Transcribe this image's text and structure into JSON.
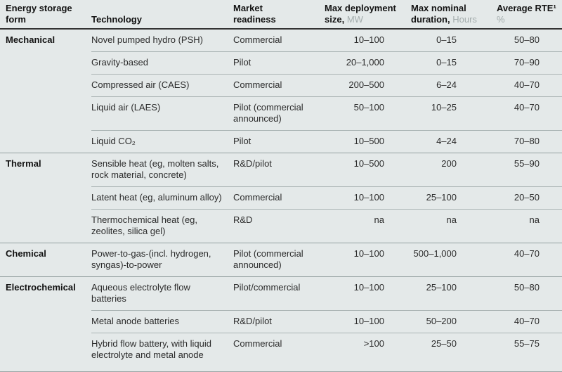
{
  "colors": {
    "background": "#e4e9e9",
    "header_rule": "#333333",
    "section_rule": "#94a0a0",
    "row_rule": "#aab4b4",
    "unit_text": "#a4adad",
    "body_text": "#2b2b2b"
  },
  "chart_data": {
    "type": "table",
    "columns": [
      {
        "label": "Energy storage form",
        "unit": ""
      },
      {
        "label": "Technology",
        "unit": ""
      },
      {
        "label": "Market readiness",
        "unit": ""
      },
      {
        "label": "Max deployment size,",
        "unit": "MW"
      },
      {
        "label": "Max nominal duration,",
        "unit": "Hours"
      },
      {
        "label": "Average RTE¹",
        "unit": "%"
      }
    ],
    "sections": [
      {
        "form": "Mechanical",
        "rows": [
          {
            "technology": "Novel pumped hydro (PSH)",
            "readiness": "Commercial",
            "size": "10–100",
            "duration": "0–15",
            "rte": "50–80"
          },
          {
            "technology": "Gravity-based",
            "readiness": "Pilot",
            "size": "20–1,000",
            "duration": "0–15",
            "rte": "70–90"
          },
          {
            "technology": "Compressed air (CAES)",
            "readiness": "Commercial",
            "size": "200–500",
            "duration": "6–24",
            "rte": "40–70"
          },
          {
            "technology": "Liquid air (LAES)",
            "readiness": "Pilot (commercial announced)",
            "size": "50–100",
            "duration": "10–25",
            "rte": "40–70"
          },
          {
            "technology": "Liquid CO₂",
            "readiness": "Pilot",
            "size": "10–500",
            "duration": "4–24",
            "rte": "70–80"
          }
        ]
      },
      {
        "form": "Thermal",
        "rows": [
          {
            "technology": "Sensible heat (eg, molten salts, rock material, concrete)",
            "readiness": "R&D/pilot",
            "size": "10–500",
            "duration": "200",
            "rte": "55–90"
          },
          {
            "technology": "Latent heat (eg, aluminum alloy)",
            "readiness": "Commercial",
            "size": "10–100",
            "duration": "25–100",
            "rte": "20–50"
          },
          {
            "technology": "Thermochemical heat (eg, zeolites, silica gel)",
            "readiness": "R&D",
            "size": "na",
            "duration": "na",
            "rte": "na"
          }
        ]
      },
      {
        "form": "Chemical",
        "rows": [
          {
            "technology": "Power-to-gas-(incl. hydrogen, syngas)-to-power",
            "readiness": "Pilot (commercial announced)",
            "size": "10–100",
            "duration": "500–1,000",
            "rte": "40–70"
          }
        ]
      },
      {
        "form": "Electrochemical",
        "rows": [
          {
            "technology": "Aqueous electrolyte flow batteries",
            "readiness": "Pilot/commercial",
            "size": "10–100",
            "duration": "25–100",
            "rte": "50–80"
          },
          {
            "technology": "Metal anode batteries",
            "readiness": "R&D/pilot",
            "size": "10–100",
            "duration": "50–200",
            "rte": "40–70"
          },
          {
            "technology": "Hybrid flow battery, with liquid electrolyte and metal anode",
            "readiness": "Commercial",
            "size": ">100",
            "duration": "25–50",
            "rte": "55–75"
          }
        ]
      }
    ]
  }
}
